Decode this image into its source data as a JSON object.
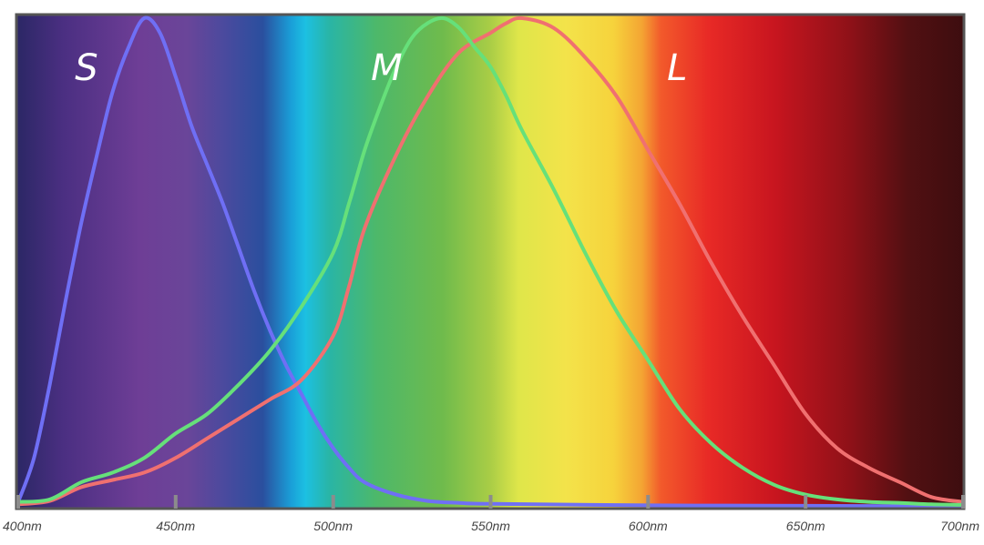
{
  "chart_data": {
    "type": "line",
    "title": "",
    "xlabel": "",
    "ylabel": "",
    "xlim": [
      400,
      700
    ],
    "ylim": [
      0,
      1
    ],
    "grid": false,
    "background": "visible light spectrum gradient (violet to dark red)",
    "tick_values": [
      400,
      450,
      500,
      550,
      600,
      650,
      700
    ],
    "tick_labels": [
      "400nm",
      "450nm",
      "500nm",
      "550nm",
      "600nm",
      "650nm",
      "700nm"
    ],
    "series": [
      {
        "name": "S",
        "color": "#6f6ff5",
        "x": [
          400,
          405,
          410,
          415,
          420,
          425,
          430,
          435,
          440,
          445,
          450,
          455,
          460,
          465,
          470,
          475,
          480,
          485,
          490,
          495,
          500,
          505,
          510,
          520,
          530,
          540,
          550,
          600,
          650,
          700
        ],
        "y": [
          0.01,
          0.1,
          0.25,
          0.42,
          0.58,
          0.72,
          0.85,
          0.94,
          1.0,
          0.97,
          0.88,
          0.78,
          0.7,
          0.62,
          0.53,
          0.44,
          0.36,
          0.29,
          0.23,
          0.17,
          0.12,
          0.08,
          0.05,
          0.025,
          0.012,
          0.008,
          0.006,
          0.003,
          0.002,
          0.001
        ]
      },
      {
        "name": "M",
        "color": "#66e07a",
        "x": [
          400,
          410,
          420,
          430,
          440,
          450,
          460,
          470,
          480,
          490,
          500,
          505,
          510,
          515,
          520,
          525,
          530,
          535,
          540,
          545,
          550,
          555,
          560,
          570,
          580,
          590,
          600,
          610,
          620,
          630,
          640,
          650,
          660,
          670,
          680,
          690,
          700
        ],
        "y": [
          0.01,
          0.015,
          0.05,
          0.07,
          0.1,
          0.15,
          0.19,
          0.25,
          0.32,
          0.41,
          0.52,
          0.62,
          0.73,
          0.82,
          0.9,
          0.96,
          0.99,
          1.0,
          0.98,
          0.94,
          0.9,
          0.84,
          0.77,
          0.65,
          0.52,
          0.4,
          0.3,
          0.2,
          0.13,
          0.08,
          0.045,
          0.025,
          0.015,
          0.01,
          0.008,
          0.005,
          0.004
        ]
      },
      {
        "name": "L",
        "color": "#f07070",
        "x": [
          400,
          410,
          420,
          430,
          440,
          450,
          460,
          470,
          480,
          490,
          500,
          505,
          510,
          520,
          530,
          540,
          550,
          555,
          560,
          570,
          580,
          590,
          600,
          610,
          620,
          630,
          640,
          650,
          660,
          670,
          680,
          690,
          700
        ],
        "y": [
          0.005,
          0.012,
          0.04,
          0.055,
          0.07,
          0.1,
          0.14,
          0.18,
          0.22,
          0.26,
          0.35,
          0.45,
          0.57,
          0.72,
          0.84,
          0.93,
          0.97,
          0.99,
          1.0,
          0.98,
          0.92,
          0.84,
          0.73,
          0.62,
          0.5,
          0.39,
          0.29,
          0.19,
          0.12,
          0.08,
          0.05,
          0.02,
          0.01
        ]
      }
    ]
  }
}
